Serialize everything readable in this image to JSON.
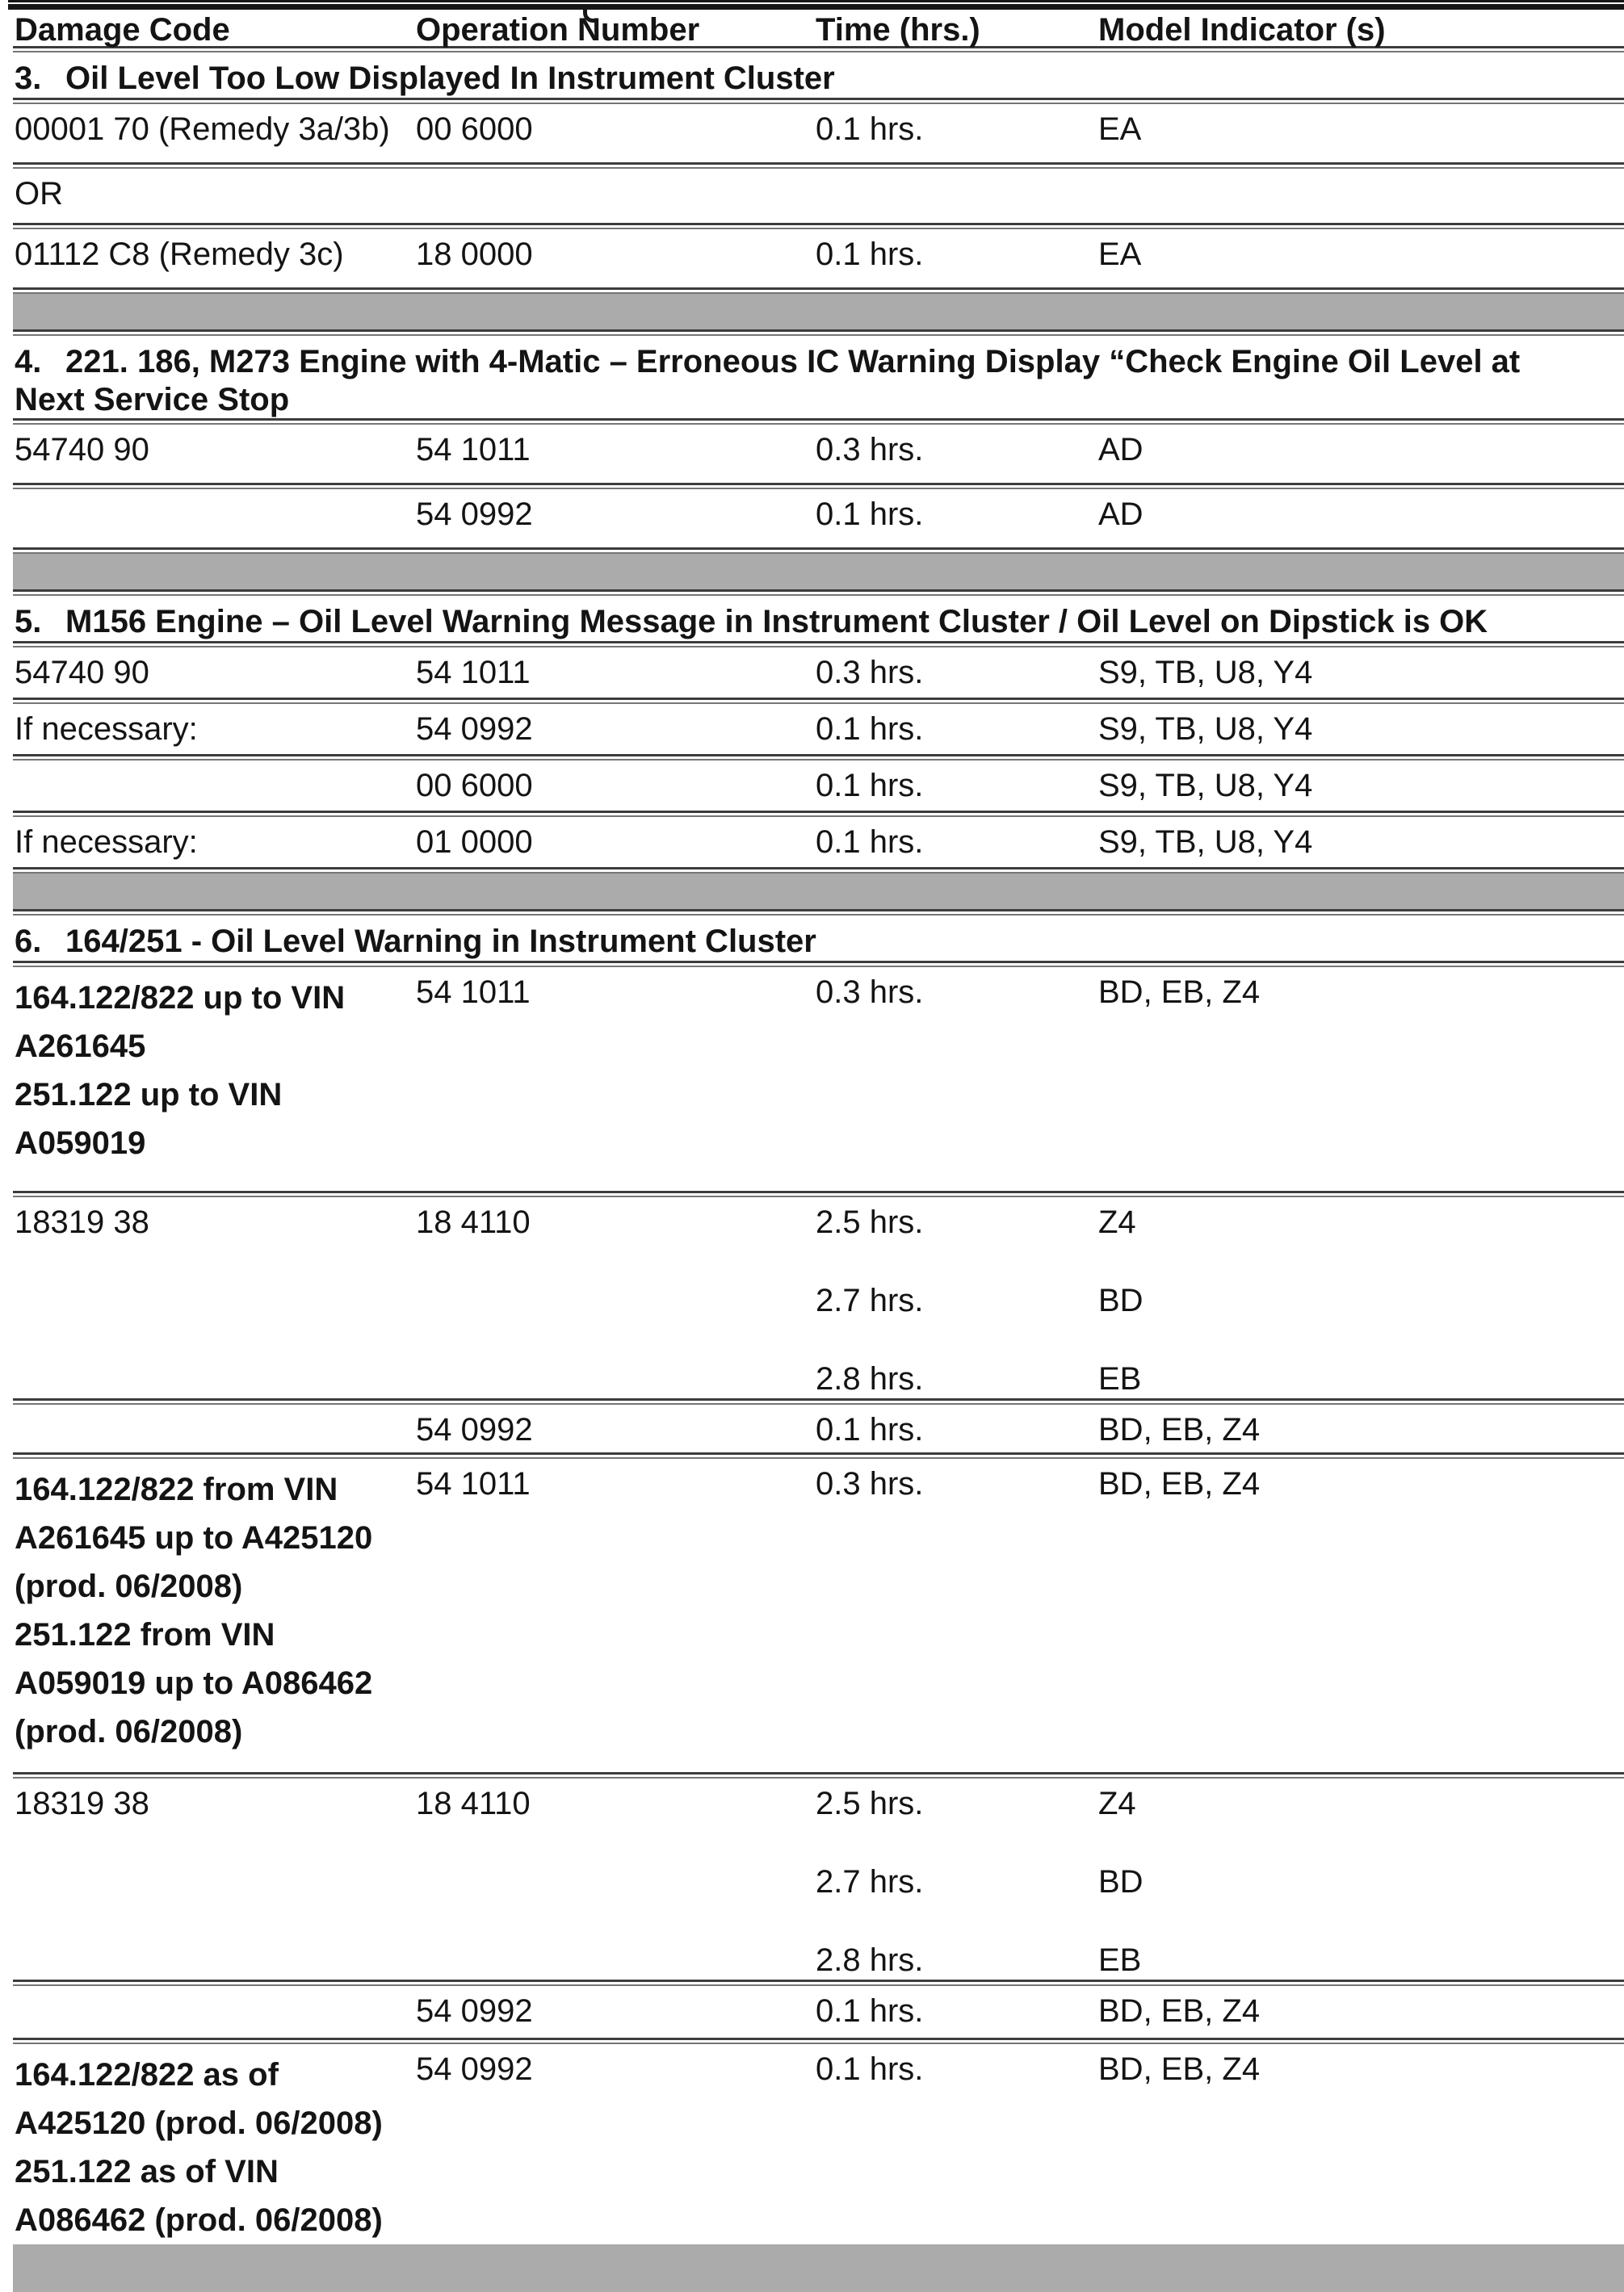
{
  "page": {
    "colors": {
      "gray_bar": "#ababab",
      "rule": "#3c3c3c",
      "text": "#141414"
    },
    "columns": {
      "damage": "Damage Code",
      "op": "Operation Number",
      "time": "Time (hrs.)",
      "model": "Model Indicator (s)"
    },
    "sections": [
      {
        "num": "3.",
        "title": "Oil Level Too Low Displayed In Instrument Cluster",
        "title2": "",
        "rows": [
          {
            "damage": "00001 70 (Remedy 3a/3b)",
            "op": "00 6000",
            "time": "0.1 hrs.",
            "model": "EA"
          },
          {
            "damage": "OR"
          },
          {
            "damage": "01112 C8 (Remedy 3c)",
            "op": "18 0000",
            "time": "0.1 hrs.",
            "model": "EA"
          }
        ]
      },
      {
        "num": "4.",
        "title": "221. 186, M273 Engine with 4-Matic – Erroneous IC Warning Display “Check Engine Oil Level at",
        "title2": "Next Service Stop",
        "rows": [
          {
            "damage": "54740 90",
            "op": "54 1011",
            "time": "0.3 hrs.",
            "model": "AD"
          },
          {
            "damage": "",
            "op": "54 0992",
            "time": "0.1 hrs.",
            "model": "AD"
          }
        ]
      },
      {
        "num": "5.",
        "title": "M156 Engine – Oil Level Warning Message in Instrument Cluster / Oil Level on Dipstick is OK",
        "title2": "",
        "rows": [
          {
            "damage": "54740 90",
            "op": "54 1011",
            "time": "0.3 hrs.",
            "model": "S9, TB, U8, Y4"
          },
          {
            "damage": "If necessary:",
            "op": "54 0992",
            "time": "0.1 hrs.",
            "model": "S9, TB, U8, Y4"
          },
          {
            "damage": "",
            "op": "00 6000",
            "time": "0.1 hrs.",
            "model": "S9, TB, U8, Y4"
          },
          {
            "damage": "If necessary:",
            "op": "01 0000",
            "time": "0.1 hrs.",
            "model": "S9, TB, U8, Y4"
          }
        ]
      },
      {
        "num": "6.",
        "title": "164/251 - Oil Level Warning in Instrument Cluster",
        "title2": "",
        "rows": [
          {
            "damage_lines": [
              "164.122/822 up to VIN",
              "A261645",
              "251.122 up to VIN",
              "A059019"
            ],
            "op": "54 1011",
            "time": "0.3 hrs.",
            "model": "BD, EB, Z4"
          },
          {
            "damage": "18319 38",
            "op": "18 4110",
            "time_rows": [
              {
                "time": "2.5 hrs.",
                "model": "Z4"
              },
              {
                "time": "2.7 hrs.",
                "model": "BD"
              },
              {
                "time": "2.8 hrs.",
                "model": "EB"
              }
            ]
          },
          {
            "damage": "",
            "op": "54 0992",
            "time": "0.1 hrs.",
            "model": "BD, EB, Z4"
          },
          {
            "damage_lines": [
              "164.122/822 from VIN",
              "A261645 up to A425120",
              "(prod. 06/2008)",
              "251.122 from VIN",
              "A059019 up to A086462",
              "(prod. 06/2008)"
            ],
            "op": "54 1011",
            "time": "0.3 hrs.",
            "model": "BD, EB, Z4"
          },
          {
            "damage": "18319 38",
            "op": "18 4110",
            "time_rows": [
              {
                "time": "2.5 hrs.",
                "model": "Z4"
              },
              {
                "time": "2.7 hrs.",
                "model": "BD"
              },
              {
                "time": "2.8 hrs.",
                "model": "EB"
              }
            ]
          },
          {
            "damage": "",
            "op": "54 0992",
            "time": "0.1 hrs.",
            "model": "BD, EB, Z4"
          },
          {
            "damage_lines": [
              "164.122/822 as of",
              "A425120 (prod. 06/2008)",
              "251.122 as of VIN",
              "A086462 (prod. 06/2008)"
            ],
            "op": "54 0992",
            "time": "0.1 hrs.",
            "model": "BD, EB, Z4"
          }
        ]
      }
    ]
  }
}
